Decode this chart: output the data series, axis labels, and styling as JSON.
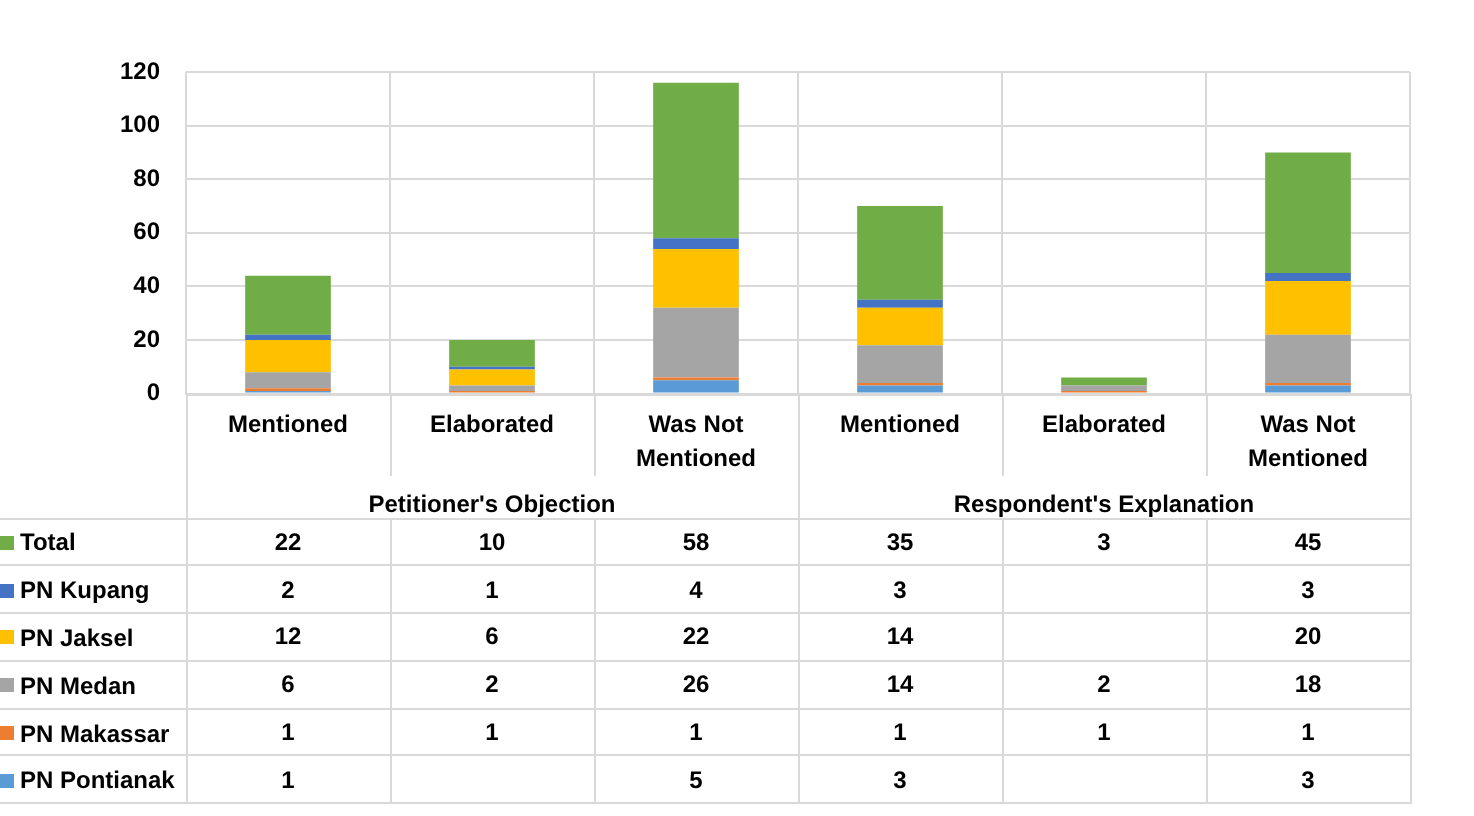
{
  "chart_data": {
    "type": "bar",
    "stacked": true,
    "categories": [
      "Mentioned",
      "Elaborated",
      "Was Not Mentioned",
      "Mentioned",
      "Elaborated",
      "Was Not Mentioned"
    ],
    "annotations": [
      "Petitioner's Objection",
      "Respondent's Explanation"
    ],
    "series": [
      {
        "name": "PN Pontianak",
        "color": "#5b9bd5",
        "values": [
          1,
          null,
          5,
          3,
          null,
          3
        ]
      },
      {
        "name": "PN Makassar",
        "color": "#ed7d31",
        "values": [
          1,
          1,
          1,
          1,
          1,
          1
        ]
      },
      {
        "name": "PN Medan",
        "color": "#a5a5a5",
        "values": [
          6,
          2,
          26,
          14,
          2,
          18
        ]
      },
      {
        "name": "PN Jaksel",
        "color": "#ffc000",
        "values": [
          12,
          6,
          22,
          14,
          null,
          20
        ]
      },
      {
        "name": "PN Kupang",
        "color": "#4472c4",
        "values": [
          2,
          1,
          4,
          3,
          null,
          3
        ]
      },
      {
        "name": "Total",
        "color": "#70ad47",
        "values": [
          22,
          10,
          58,
          35,
          3,
          45
        ]
      }
    ],
    "ylim": [
      0,
      120
    ],
    "yticks": [
      0,
      20,
      40,
      60,
      80,
      100,
      120
    ],
    "grid": true,
    "legend": "bottom",
    "data_labels": true
  }
}
